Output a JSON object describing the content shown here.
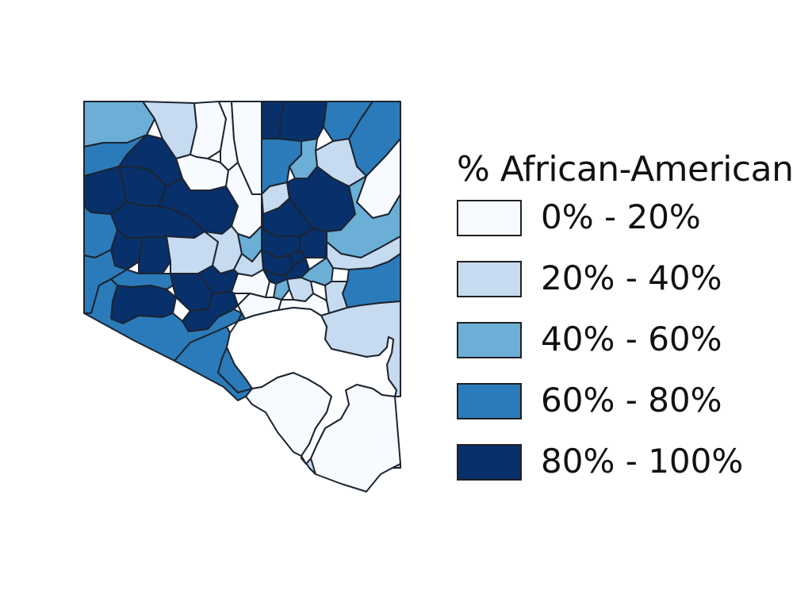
{
  "legend": {
    "title": "% African-American",
    "classes": [
      {
        "label": "0% - 20%",
        "color": "#f7fbff"
      },
      {
        "label": "20% - 40%",
        "color": "#c6dbef"
      },
      {
        "label": "40% - 60%",
        "color": "#6baed6"
      },
      {
        "label": "60% - 80%",
        "color": "#2b7bba"
      },
      {
        "label": "80% - 100%",
        "color": "#08306b"
      }
    ]
  },
  "map": {
    "region_classes": [
      1,
      1,
      0,
      0,
      0,
      2,
      3,
      3,
      3,
      4,
      1,
      0,
      0,
      4,
      2,
      3,
      4,
      4,
      4,
      0,
      1,
      4,
      2,
      3,
      4,
      4,
      4,
      4,
      4,
      1,
      3,
      1,
      2,
      4,
      3,
      4,
      4,
      4,
      4,
      1,
      4,
      4,
      1,
      0,
      3,
      4,
      2,
      1,
      2,
      3,
      1,
      0,
      0,
      1,
      3,
      3,
      0,
      0,
      1,
      3,
      4,
      2,
      2
    ]
  }
}
